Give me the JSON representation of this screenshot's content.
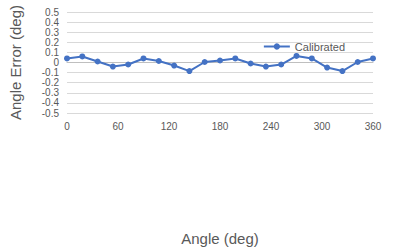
{
  "chart_data": {
    "type": "line",
    "xlabel": "Angle (deg)",
    "ylabel": "Angle Error (deg)",
    "x": [
      0,
      18,
      36,
      54,
      72,
      90,
      108,
      126,
      144,
      162,
      180,
      198,
      216,
      234,
      252,
      270,
      288,
      306,
      324,
      342,
      360
    ],
    "series": [
      {
        "name": "Calibrated",
        "color": "#4472c4",
        "marker": "circle",
        "values": [
          0.04,
          0.06,
          0.01,
          -0.04,
          -0.02,
          0.04,
          0.015,
          -0.03,
          -0.085,
          0.005,
          0.02,
          0.04,
          -0.01,
          -0.04,
          -0.02,
          0.065,
          0.04,
          -0.05,
          -0.085,
          0.005,
          0.04
        ]
      }
    ],
    "xlim": [
      0,
      360
    ],
    "xticks": [
      0,
      60,
      120,
      180,
      240,
      300,
      360
    ],
    "ylim": [
      -0.5,
      0.5
    ],
    "yticks": [
      -0.5,
      -0.4,
      -0.3,
      -0.2,
      -0.1,
      0,
      0.1,
      0.2,
      0.3,
      0.4,
      0.5
    ],
    "grid": true,
    "legend": "top right"
  }
}
